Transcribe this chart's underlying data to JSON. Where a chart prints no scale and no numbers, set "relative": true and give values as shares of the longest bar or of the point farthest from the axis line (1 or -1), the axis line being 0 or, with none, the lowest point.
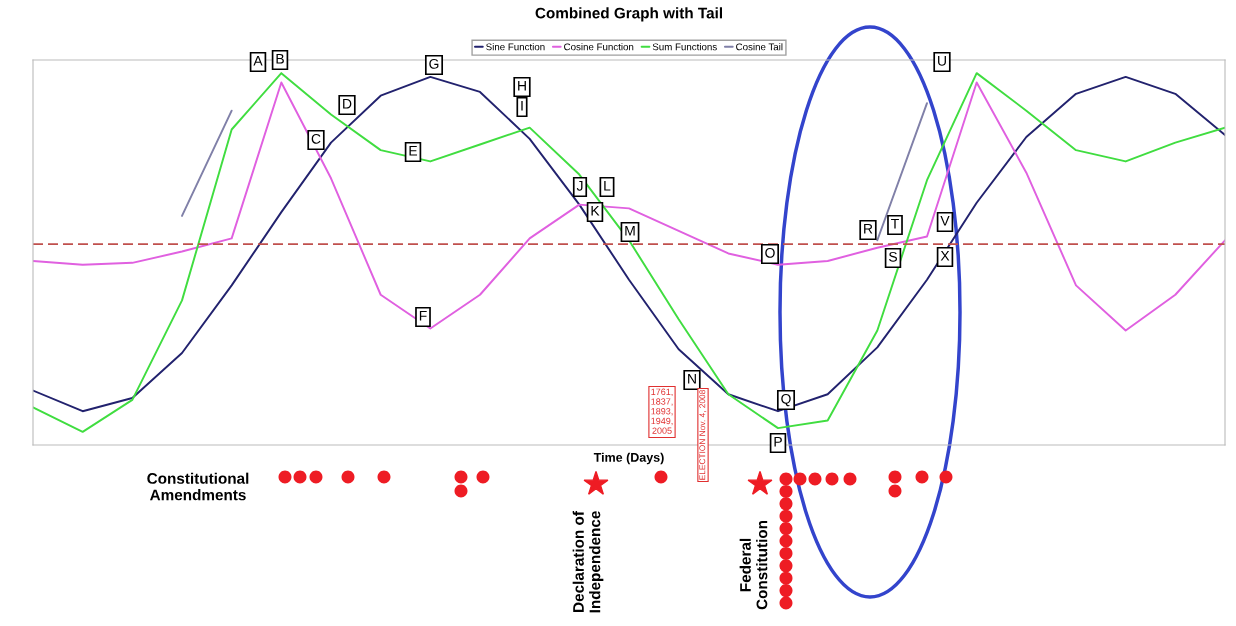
{
  "chart_data": {
    "type": "line",
    "title": "Combined Graph with Tail",
    "xlabel": "Time (Days)",
    "relative": true,
    "legend": "top",
    "ref_lines": [
      {
        "axis": "y",
        "value": 0,
        "color": "#c0504d",
        "line_style": "dashed"
      }
    ],
    "categories": [
      null,
      null,
      null,
      null,
      null,
      null,
      null,
      null,
      null,
      null,
      null,
      null,
      null,
      null,
      null,
      null,
      null,
      null,
      null,
      null,
      null,
      null,
      null,
      null,
      null
    ],
    "series": [
      {
        "name": "Sine Function",
        "color": "#22226e",
        "values": [
          -0.78,
          -0.89,
          -0.82,
          -0.58,
          -0.22,
          0.17,
          0.54,
          0.79,
          0.89,
          0.81,
          0.56,
          0.21,
          -0.19,
          -0.56,
          -0.8,
          -0.89,
          -0.8,
          -0.55,
          -0.19,
          0.22,
          0.57,
          0.8,
          0.89,
          0.8,
          0.58
        ]
      },
      {
        "name": "Cosine Function",
        "color": "#e060e0",
        "values": [
          -0.09,
          -0.11,
          -0.1,
          -0.04,
          0.03,
          0.86,
          0.35,
          -0.27,
          -0.45,
          -0.27,
          0.03,
          0.21,
          0.19,
          0.07,
          -0.05,
          -0.11,
          -0.09,
          -0.02,
          0.04,
          0.86,
          0.38,
          -0.22,
          -0.46,
          -0.27,
          0.02
        ]
      },
      {
        "name": "Sum Functions",
        "color": "#40dd40",
        "values": [
          -0.87,
          -1.0,
          -0.83,
          -0.3,
          0.61,
          0.91,
          0.69,
          0.5,
          0.44,
          0.53,
          0.62,
          0.37,
          0.02,
          -0.4,
          -0.8,
          -0.98,
          -0.94,
          -0.46,
          0.34,
          0.91,
          0.71,
          0.5,
          0.44,
          0.54,
          0.62
        ]
      },
      {
        "name": "Cosine Tail",
        "color": "#8080a8",
        "values": [
          null,
          null,
          null,
          0.15,
          0.71,
          null,
          null,
          null,
          null,
          null,
          null,
          null,
          null,
          null,
          null,
          null,
          null,
          null,
          null,
          null,
          null,
          null,
          null,
          null,
          null
        ]
      },
      {
        "color": "#8080a8",
        "values": [
          null,
          null,
          null,
          null,
          null,
          null,
          null,
          null,
          null,
          null,
          null,
          null,
          null,
          null,
          null,
          null,
          null,
          0.02,
          0.75,
          null,
          null,
          null,
          null,
          null,
          null
        ]
      }
    ],
    "annotations": [
      "A",
      "B",
      "C",
      "D",
      "E",
      "F",
      "G",
      "H",
      "I",
      "J",
      "K",
      "L",
      "M",
      "N",
      "O",
      "P",
      "Q",
      "R",
      "S",
      "T",
      "U",
      "V",
      "X",
      "1761,\n1837,\n1893,\n1949,\n2005",
      "ELECTION Nov. 4, 2008",
      "Constitutional\nAmendments",
      "Declaration of\nIndependence",
      "Federal\nConstitution"
    ]
  }
}
